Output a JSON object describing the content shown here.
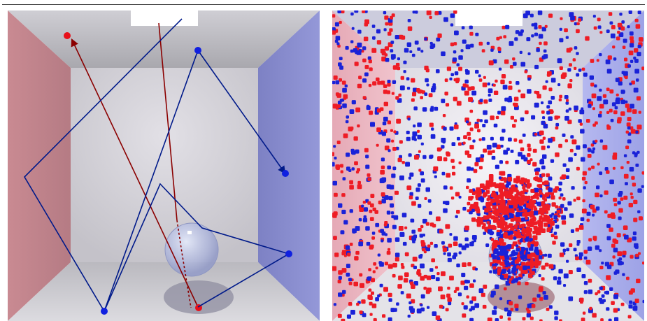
{
  "scene": {
    "colors": {
      "left_wall": "#c98a92",
      "right_wall": "#8a8ed0",
      "back_wall": "#d4d2d8",
      "ceiling": "#bdbcc3",
      "floor": "#c9c7cd",
      "light": "#ffffff",
      "glass_sphere": "#b9c2e8"
    }
  },
  "left_panel": {
    "paths": [
      {
        "name": "red-light-path",
        "color": "#8b0000"
      },
      {
        "name": "blue-light-path",
        "color": "#001a8a"
      }
    ],
    "endpoint_colors": {
      "red": "#e8101a",
      "blue": "#1020e0"
    }
  },
  "right_panel": {
    "particle_colors": [
      "#ee1c25",
      "#1a22d8"
    ]
  }
}
